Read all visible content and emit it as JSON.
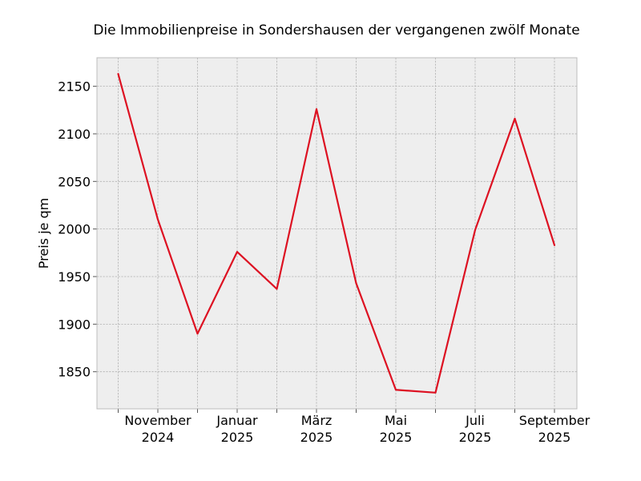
{
  "chart_data": {
    "type": "line",
    "title": "Die Immobilienpreise in Sondershausen der vergangenen zwölf Monate",
    "xlabel": "",
    "ylabel": "Preis je qm",
    "x": [
      "2024-10",
      "2024-11",
      "2024-12",
      "2025-01",
      "2025-02",
      "2025-03",
      "2025-04",
      "2025-05",
      "2025-06",
      "2025-07",
      "2025-08",
      "2025-09"
    ],
    "series": [
      {
        "values": [
          2163,
          2010,
          1890,
          1976,
          1937,
          2126,
          1943,
          1831,
          1828,
          1999,
          2116,
          1983
        ],
        "color": "#dd1122"
      }
    ],
    "ylim": [
      1811,
      2180
    ],
    "yticks": [
      1850,
      1900,
      1950,
      2000,
      2050,
      2100,
      2150
    ],
    "xtick_labels": [
      {
        "x": "2024-11",
        "line1": "November",
        "line2": "2024"
      },
      {
        "x": "2025-01",
        "line1": "Januar",
        "line2": "2025"
      },
      {
        "x": "2025-03",
        "line1": "März",
        "line2": "2025"
      },
      {
        "x": "2025-05",
        "line1": "Mai",
        "line2": "2025"
      },
      {
        "x": "2025-07",
        "line1": "Juli",
        "line2": "2025"
      },
      {
        "x": "2025-09",
        "line1": "September",
        "line2": "2025"
      }
    ],
    "grid": true,
    "legend": "none",
    "colors": {
      "plot_background": "#eeeeee",
      "grid": "#b0b0b0",
      "spine": "#bcbcbc",
      "line": "#dd1122"
    }
  }
}
